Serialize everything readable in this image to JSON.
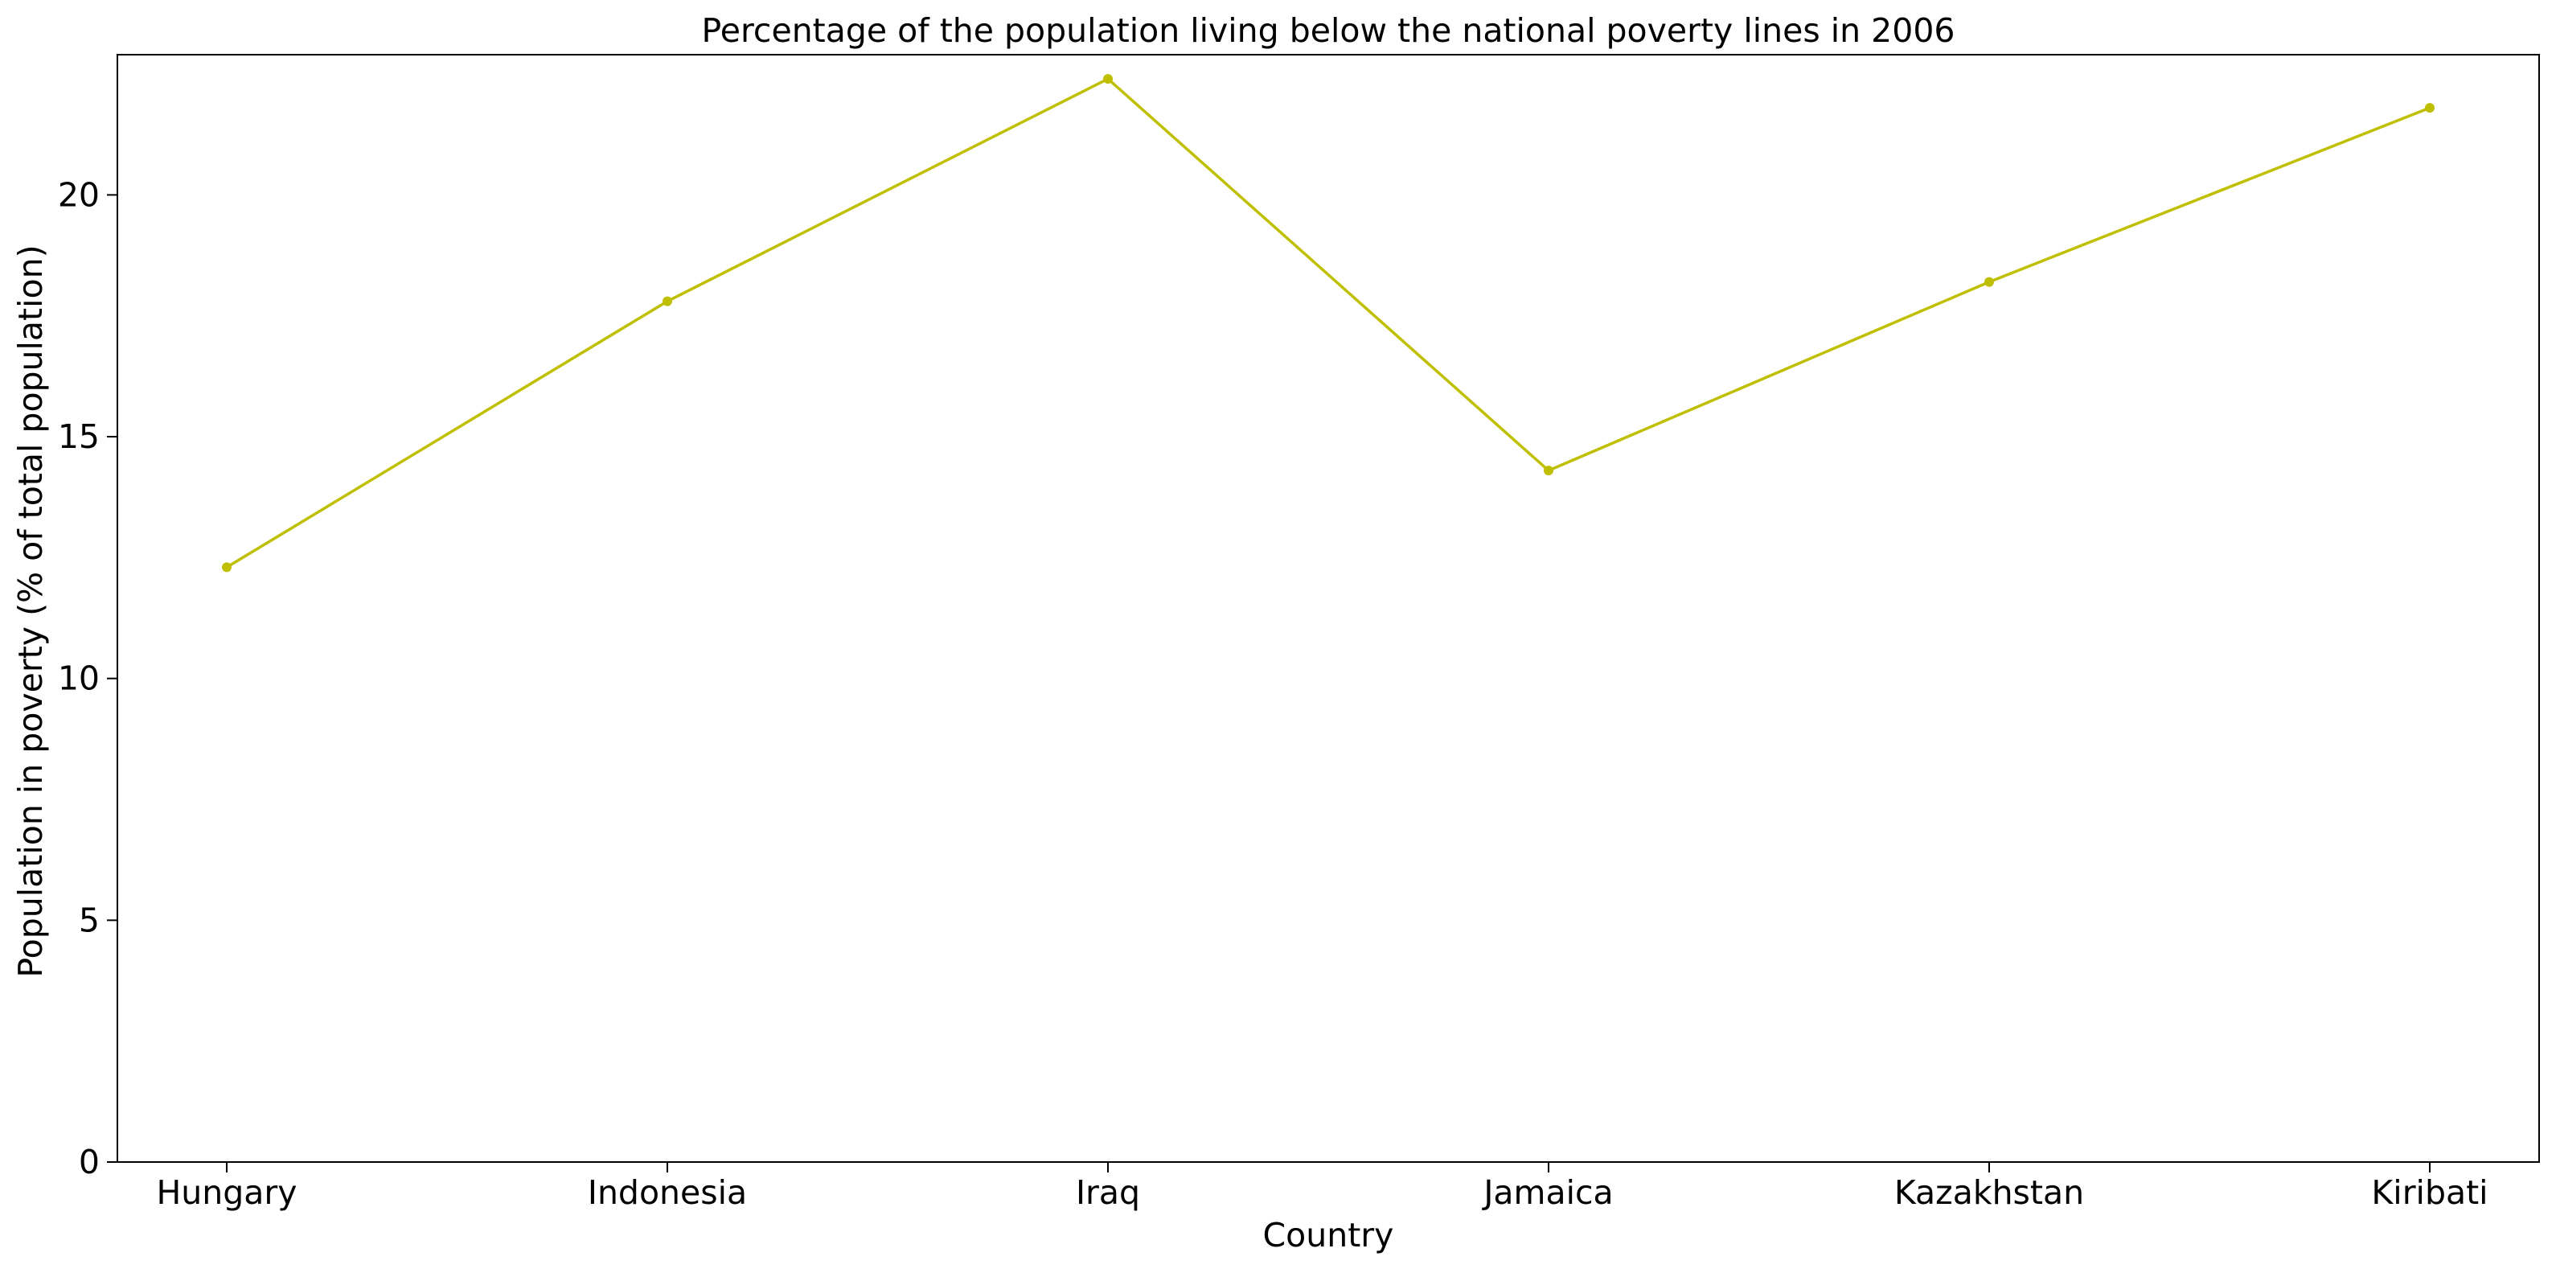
{
  "chart_data": {
    "type": "line",
    "title": "Percentage of the population living below the national poverty lines in 2006",
    "xlabel": "Country",
    "ylabel": "Population in poverty (% of total population)",
    "categories": [
      "Hungary",
      "Indonesia",
      "Iraq",
      "Jamaica",
      "Kazakhstan",
      "Kiribati"
    ],
    "series": [
      {
        "values": [
          12.3,
          17.8,
          22.4,
          14.3,
          18.2,
          21.8
        ],
        "color": "#bfbf00"
      }
    ],
    "ylim": [
      0,
      22.9
    ],
    "yticks": [
      0,
      5,
      10,
      15,
      20
    ],
    "grid": false,
    "legend": "none"
  }
}
